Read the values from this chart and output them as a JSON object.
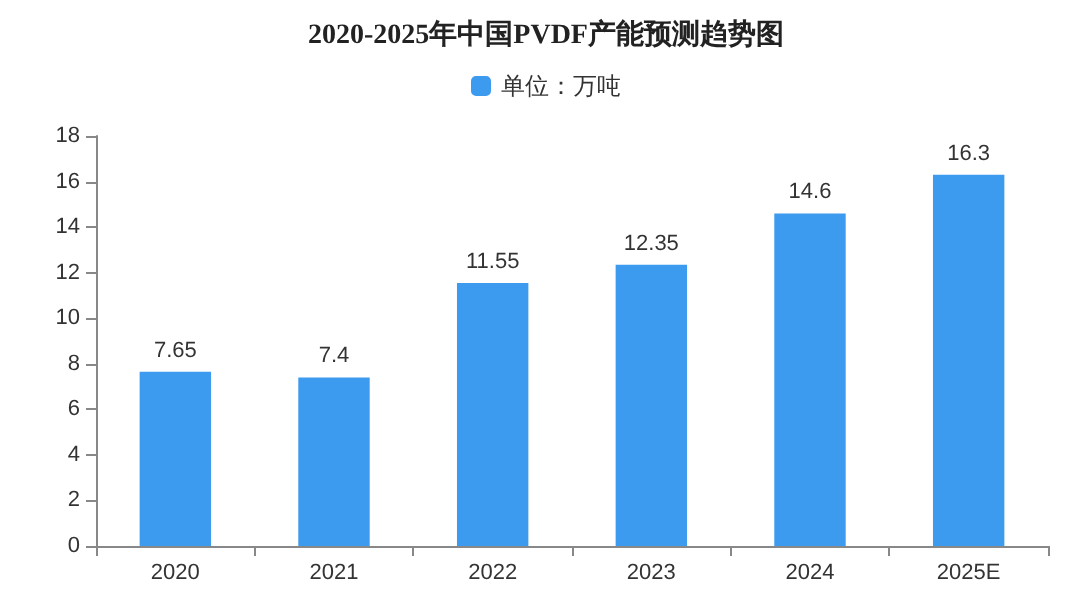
{
  "chart_data": {
    "type": "bar",
    "title": "2020-2025年中国PVDF产能预测趋势图",
    "categories": [
      "2020",
      "2021",
      "2022",
      "2023",
      "2024",
      "2025E"
    ],
    "series": [
      {
        "name": "单位：万吨",
        "color": "#3d9bef",
        "values": [
          7.65,
          7.4,
          11.55,
          12.35,
          14.6,
          16.3
        ]
      }
    ],
    "ylim": [
      0,
      18
    ],
    "yticks": [
      0,
      2,
      4,
      6,
      8,
      10,
      12,
      14,
      16,
      18
    ],
    "grid": false,
    "legend": "top",
    "data_labels": true
  }
}
